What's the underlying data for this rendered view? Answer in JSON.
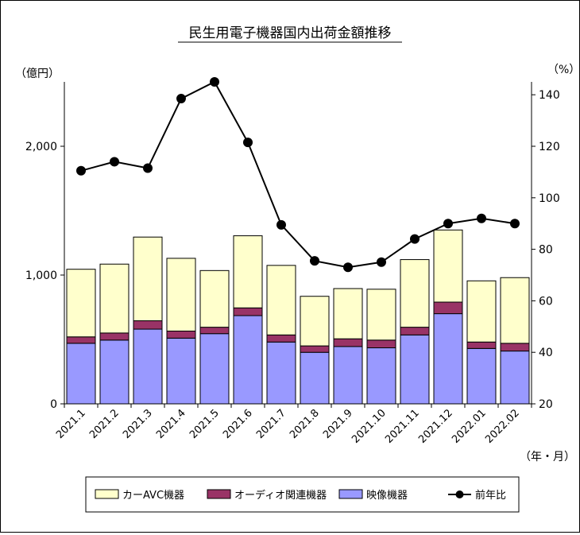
{
  "chart_data": {
    "type": "bar",
    "stacked": true,
    "title": "民生用電子機器国内出荷金額推移",
    "y_left_unit": "（億円）",
    "y_right_unit": "（%）",
    "x_unit": "（年・月）",
    "y_left_ticks": [
      "0",
      "1,000",
      "2,000"
    ],
    "y_right_ticks": [
      "20",
      "40",
      "60",
      "80",
      "100",
      "120",
      "140"
    ],
    "y_left_range": [
      0,
      2500
    ],
    "y_right_range": [
      20,
      145
    ],
    "categories": [
      "2021.1",
      "2021.2",
      "2021.3",
      "2021.4",
      "2021.5",
      "2021.6",
      "2021.7",
      "2021.8",
      "2021.9",
      "2021.10",
      "2021.11",
      "2021.12",
      "2022.01",
      "2022.02"
    ],
    "series": [
      {
        "name": "映像機器",
        "kind": "bar",
        "color": "#9999ff",
        "values": [
          470,
          495,
          580,
          510,
          545,
          685,
          480,
          400,
          445,
          435,
          535,
          700,
          430,
          410
        ]
      },
      {
        "name": "オーディオ関連機器",
        "kind": "bar",
        "color": "#993366",
        "values": [
          50,
          55,
          65,
          55,
          50,
          60,
          55,
          50,
          60,
          60,
          60,
          90,
          50,
          60
        ]
      },
      {
        "name": "カーAVC機器",
        "kind": "bar",
        "color": "#ffffcc",
        "values": [
          525,
          535,
          650,
          565,
          440,
          560,
          540,
          385,
          390,
          395,
          525,
          560,
          475,
          510
        ]
      },
      {
        "name": "前年比",
        "kind": "line",
        "axis": "right",
        "color": "#000000",
        "values": [
          110.5,
          114,
          111.5,
          138.5,
          145,
          121.5,
          89.5,
          75.5,
          73,
          75,
          84,
          90,
          92,
          90
        ]
      }
    ],
    "legend": {
      "position": "bottom",
      "entries": [
        "カーAVC機器",
        "オーディオ関連機器",
        "映像機器",
        "前年比"
      ]
    },
    "grid": false
  }
}
